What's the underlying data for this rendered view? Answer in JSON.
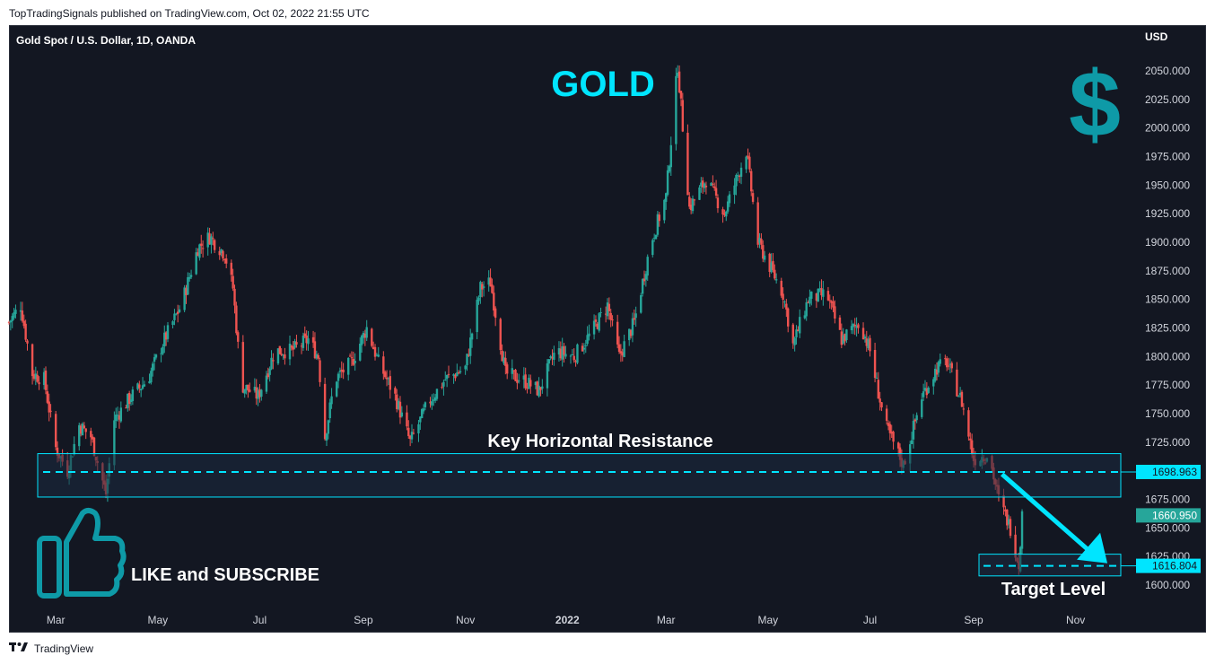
{
  "header": {
    "published": "TopTradingSignals published on TradingView.com, Oct 02, 2022 21:55 UTC"
  },
  "symbol": "Gold Spot / U.S. Dollar, 1D, OANDA",
  "currency": "USD",
  "footer": {
    "brand": "TradingView",
    "logo_icon": "tradingview-logo-icon"
  },
  "colors": {
    "background": "#131722",
    "up_candle": "#26a69a",
    "down_candle": "#ef5350",
    "accent_cyan": "#00e5ff",
    "zone_fill": "#1c2a3f",
    "axis_text": "#d1d4dc",
    "last_price_bg": "#26a69a",
    "icon_teal": "#0e9aa7"
  },
  "annotations": {
    "title": "GOLD",
    "resistance_label": "Key Horizontal Resistance",
    "target_label": "Target Level",
    "like_label": "LIKE and SUBSCRIBE",
    "dollar_icon": "dollar-icon",
    "thumbs_icon": "thumbs-up-icon"
  },
  "chart_data": {
    "type": "candlestick",
    "title": "",
    "xlabel": "",
    "ylabel": "",
    "ylim": [
      1597,
      2080
    ],
    "y_ticks": [
      "2050.000",
      "2025.000",
      "2000.000",
      "1975.000",
      "1950.000",
      "1925.000",
      "1900.000",
      "1875.000",
      "1850.000",
      "1825.000",
      "1800.000",
      "1775.000",
      "1750.000",
      "1725.000",
      "1675.000",
      "1650.000",
      "1625.000",
      "1600.000"
    ],
    "x_ticks": [
      {
        "label": "Mar",
        "x": "2021-03-01",
        "bold": false
      },
      {
        "label": "May",
        "x": "2021-05-01",
        "bold": false
      },
      {
        "label": "Jul",
        "x": "2021-07-01",
        "bold": false
      },
      {
        "label": "Sep",
        "x": "2021-09-01",
        "bold": false
      },
      {
        "label": "Nov",
        "x": "2021-11-01",
        "bold": false
      },
      {
        "label": "2022",
        "x": "2022-01-01",
        "bold": true
      },
      {
        "label": "Mar",
        "x": "2022-03-01",
        "bold": false
      },
      {
        "label": "May",
        "x": "2022-05-01",
        "bold": false
      },
      {
        "label": "Jul",
        "x": "2022-07-01",
        "bold": false
      },
      {
        "label": "Sep",
        "x": "2022-09-01",
        "bold": false
      },
      {
        "label": "Nov",
        "x": "2022-11-01",
        "bold": false
      }
    ],
    "x_range": [
      "2021-02-01",
      "2022-12-05"
    ],
    "price_path": [
      [
        "2021-02-01",
        1830
      ],
      [
        "2021-02-08",
        1845
      ],
      [
        "2021-02-15",
        1785
      ],
      [
        "2021-02-22",
        1780
      ],
      [
        "2021-03-01",
        1720
      ],
      [
        "2021-03-08",
        1700
      ],
      [
        "2021-03-15",
        1740
      ],
      [
        "2021-03-22",
        1730
      ],
      [
        "2021-03-31",
        1680
      ],
      [
        "2021-04-05",
        1745
      ],
      [
        "2021-04-15",
        1765
      ],
      [
        "2021-04-25",
        1780
      ],
      [
        "2021-05-05",
        1815
      ],
      [
        "2021-05-15",
        1845
      ],
      [
        "2021-05-25",
        1895
      ],
      [
        "2021-06-01",
        1905
      ],
      [
        "2021-06-10",
        1890
      ],
      [
        "2021-06-15",
        1860
      ],
      [
        "2021-06-20",
        1775
      ],
      [
        "2021-06-30",
        1765
      ],
      [
        "2021-07-10",
        1805
      ],
      [
        "2021-07-20",
        1805
      ],
      [
        "2021-07-30",
        1815
      ],
      [
        "2021-08-05",
        1800
      ],
      [
        "2021-08-09",
        1730
      ],
      [
        "2021-08-15",
        1780
      ],
      [
        "2021-08-25",
        1795
      ],
      [
        "2021-09-03",
        1825
      ],
      [
        "2021-09-10",
        1795
      ],
      [
        "2021-09-20",
        1765
      ],
      [
        "2021-09-29",
        1725
      ],
      [
        "2021-10-10",
        1760
      ],
      [
        "2021-10-20",
        1780
      ],
      [
        "2021-11-01",
        1790
      ],
      [
        "2021-11-10",
        1860
      ],
      [
        "2021-11-16",
        1865
      ],
      [
        "2021-11-25",
        1785
      ],
      [
        "2021-12-05",
        1780
      ],
      [
        "2021-12-15",
        1770
      ],
      [
        "2021-12-25",
        1805
      ],
      [
        "2022-01-05",
        1800
      ],
      [
        "2022-01-15",
        1820
      ],
      [
        "2022-01-25",
        1845
      ],
      [
        "2022-02-01",
        1800
      ],
      [
        "2022-02-10",
        1830
      ],
      [
        "2022-02-20",
        1900
      ],
      [
        "2022-03-01",
        1940
      ],
      [
        "2022-03-08",
        2055
      ],
      [
        "2022-03-15",
        1930
      ],
      [
        "2022-03-25",
        1955
      ],
      [
        "2022-04-05",
        1925
      ],
      [
        "2022-04-18",
        1980
      ],
      [
        "2022-04-25",
        1900
      ],
      [
        "2022-05-10",
        1855
      ],
      [
        "2022-05-16",
        1810
      ],
      [
        "2022-05-25",
        1850
      ],
      [
        "2022-06-05",
        1855
      ],
      [
        "2022-06-14",
        1815
      ],
      [
        "2022-06-25",
        1830
      ],
      [
        "2022-07-01",
        1805
      ],
      [
        "2022-07-10",
        1740
      ],
      [
        "2022-07-21",
        1705
      ],
      [
        "2022-08-01",
        1765
      ],
      [
        "2022-08-10",
        1790
      ],
      [
        "2022-08-16",
        1795
      ],
      [
        "2022-08-25",
        1760
      ],
      [
        "2022-09-01",
        1710
      ],
      [
        "2022-09-10",
        1715
      ],
      [
        "2022-09-16",
        1675
      ],
      [
        "2022-09-23",
        1650
      ],
      [
        "2022-09-28",
        1618
      ],
      [
        "2022-09-30",
        1661
      ]
    ],
    "levels": [
      {
        "label": "1698.963",
        "value": 1698.963,
        "style": "dashed",
        "tag": "outline"
      },
      {
        "label": "1660.950",
        "value": 1660.95,
        "style": "none",
        "tag": "filled"
      },
      {
        "label": "1616.804",
        "value": 1616.804,
        "style": "dashed",
        "tag": "outline"
      }
    ],
    "resistance_zone": [
      1677,
      1715
    ],
    "target_zone": [
      1608,
      1627
    ],
    "arrow": {
      "from": [
        "2022-09-18",
        1697
      ],
      "to": [
        "2022-11-20",
        1619
      ]
    },
    "legend": "none",
    "grid": false
  }
}
